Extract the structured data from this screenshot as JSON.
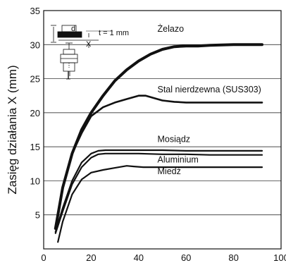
{
  "chart_data": {
    "type": "line",
    "title": "",
    "xlabel": "",
    "ylabel": "Zasięg działania X (mm)",
    "xlim": [
      0,
      100
    ],
    "ylim": [
      0,
      35
    ],
    "x_ticks": [
      0,
      20,
      40,
      60,
      80,
      100
    ],
    "y_ticks": [
      5,
      10,
      15,
      20,
      25,
      30,
      35
    ],
    "grid": "horizontal",
    "series": [
      {
        "name": "Żelazo",
        "x": [
          5,
          8,
          12,
          16,
          20,
          25,
          30,
          35,
          40,
          45,
          50,
          55,
          60,
          65,
          70,
          80,
          92
        ],
        "y": [
          3,
          9,
          14,
          17.5,
          20,
          22.5,
          24.7,
          26.3,
          27.6,
          28.6,
          29.3,
          29.7,
          29.8,
          29.8,
          29.9,
          30,
          30
        ]
      },
      {
        "name": "Stal nierdzewna (SUS303)",
        "x": [
          5,
          8,
          12,
          16,
          20,
          25,
          30,
          35,
          40,
          43,
          47,
          50,
          55,
          60,
          70,
          80,
          92
        ],
        "y": [
          3,
          9,
          14,
          17,
          19.5,
          20.8,
          21.5,
          22,
          22.5,
          22.5,
          22.1,
          21.8,
          21.6,
          21.5,
          21.5,
          21.5,
          21.5
        ]
      },
      {
        "name": "Mosiądz",
        "x": [
          5,
          8,
          12,
          16,
          20,
          23,
          26,
          30,
          40,
          50,
          60,
          70,
          80,
          92
        ],
        "y": [
          2.5,
          6,
          10,
          12.7,
          14,
          14.4,
          14.5,
          14.5,
          14.5,
          14.5,
          14.4,
          14.4,
          14.4,
          14.4
        ]
      },
      {
        "name": "Aluminium",
        "x": [
          5,
          8,
          12,
          16,
          20,
          23,
          26,
          30,
          40,
          50,
          60,
          70,
          80,
          92
        ],
        "y": [
          2.3,
          5.5,
          9.5,
          12,
          13.4,
          13.9,
          14,
          14,
          14,
          13.9,
          13.9,
          13.8,
          13.8,
          13.8
        ]
      },
      {
        "name": "Miedź",
        "x": [
          6,
          8,
          12,
          16,
          20,
          25,
          30,
          35,
          38,
          42,
          50,
          60,
          70,
          80,
          92
        ],
        "y": [
          1,
          4,
          8,
          10.2,
          11.2,
          11.6,
          11.9,
          12.2,
          12.1,
          12,
          12,
          12,
          12,
          12,
          12
        ]
      }
    ],
    "annotation": {
      "label": "t = 1 mm",
      "d": "d",
      "x": "X"
    }
  }
}
